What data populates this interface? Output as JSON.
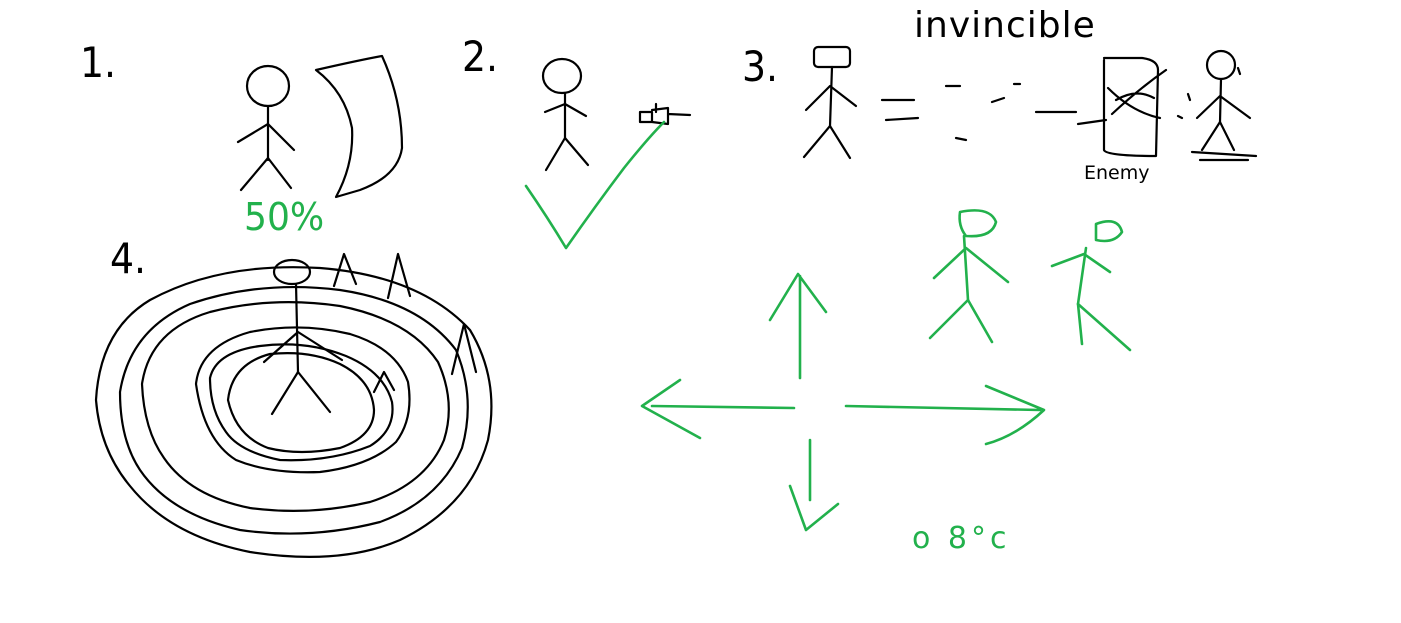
{
  "colors": {
    "ink": "#000000",
    "green": "#22b14c",
    "background": "#ffffff"
  },
  "steps": [
    {
      "number": "1."
    },
    {
      "number": "2."
    },
    {
      "number": "3."
    },
    {
      "number": "4."
    }
  ],
  "labels": {
    "percent": "50%",
    "invincible": "invincible",
    "enemy": "Enemy",
    "bottom_text": "o 8°c"
  }
}
